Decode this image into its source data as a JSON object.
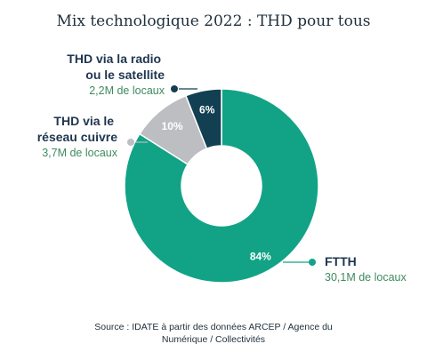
{
  "chart_data": {
    "type": "pie",
    "title": "Mix technologique 2022 : THD pour tous",
    "categories": [
      "FTTH",
      "THD via le réseau cuivre",
      "THD via la radio ou le satellite"
    ],
    "values": [
      84,
      10,
      6
    ],
    "value_labels": [
      "84%",
      "10%",
      "6%"
    ],
    "sublabels": [
      "30,1M de locaux",
      "3,7M de locaux",
      "2,2M de locaux"
    ],
    "label_lines": [
      [
        "FTTH"
      ],
      [
        "THD via le",
        "réseau cuivre"
      ],
      [
        "THD via la radio",
        "ou le satellite"
      ]
    ],
    "colors": [
      "#12a386",
      "#bcbec1",
      "#123f52"
    ],
    "source": [
      "Source : IDATE à partir des données ARCEP / Agence du",
      "Numérique / Collectivités"
    ]
  }
}
